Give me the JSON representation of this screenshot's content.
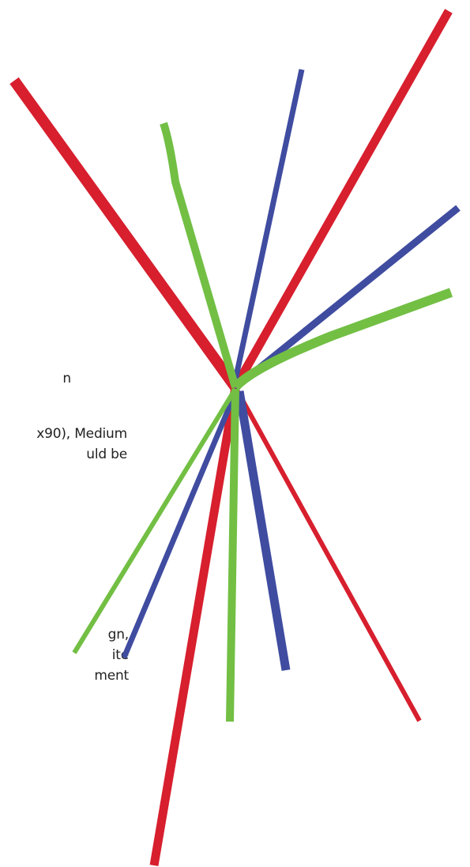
{
  "text_fragments": {
    "a": {
      "lines": [
        "n"
      ]
    },
    "b": {
      "lines": [
        "x90), Medium",
        "uld be"
      ]
    },
    "c": {
      "lines": [
        "gn,",
        "ite",
        "ment"
      ]
    }
  },
  "colors": {
    "red": "#d71f2e",
    "blue": "#3f4ca0",
    "green": "#72bf44"
  }
}
